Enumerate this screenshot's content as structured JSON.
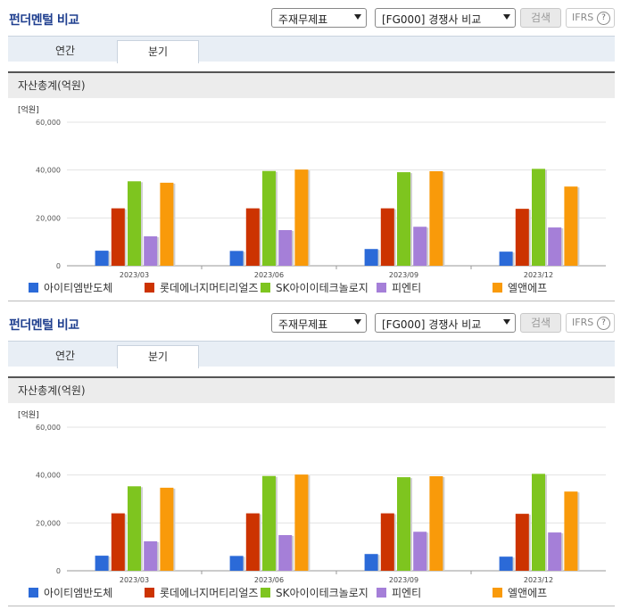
{
  "panels": [
    {
      "title": "펀더멘털 비교",
      "select1": "주재무제표",
      "select2": "[FG000] 경쟁사 비교",
      "search_label": "검색",
      "ifrs_label": "IFRS",
      "help_glyph": "?",
      "tabs": [
        "연간",
        "분기"
      ],
      "active_tab": "분기",
      "section_title": "자산총계(억원)"
    },
    {
      "title": "펀더멘털 비교",
      "select1": "주재무제표",
      "select2": "[FG000] 경쟁사 비교",
      "search_label": "검색",
      "ifrs_label": "IFRS",
      "help_glyph": "?",
      "tabs": [
        "연간",
        "분기"
      ],
      "active_tab": "분기",
      "section_title": "자산총계(억원)"
    }
  ],
  "chart_data": [
    {
      "type": "bar",
      "title": "자산총계(억원)",
      "unit_label": "[억원]",
      "ylim": [
        0,
        60000
      ],
      "yticks": [
        "0",
        "20,000",
        "40,000",
        "60,000"
      ],
      "categories": [
        "2023/03",
        "2023/06",
        "2023/09",
        "2023/12"
      ],
      "grid": true,
      "legend_position": "bottom",
      "series": [
        {
          "name": "아이티엠반도체",
          "color": "#2b6ad8",
          "values": [
            6300,
            6200,
            7000,
            5900
          ]
        },
        {
          "name": "롯데에너지머티리얼즈",
          "color": "#cc3300",
          "values": [
            24000,
            24000,
            24000,
            23800
          ]
        },
        {
          "name": "SK아이이테크놀로지",
          "color": "#7ec51f",
          "values": [
            35300,
            39600,
            39100,
            40500
          ]
        },
        {
          "name": "피엔티",
          "color": "#a57fd8",
          "values": [
            12300,
            14900,
            16300,
            16000
          ]
        },
        {
          "name": "엘앤에프",
          "color": "#f99a0a",
          "values": [
            34700,
            40200,
            39500,
            33100
          ]
        }
      ]
    },
    {
      "type": "bar",
      "title": "자산총계(억원)",
      "unit_label": "[억원]",
      "ylim": [
        0,
        60000
      ],
      "yticks": [
        "0",
        "20,000",
        "40,000",
        "60,000"
      ],
      "categories": [
        "2023/03",
        "2023/06",
        "2023/09",
        "2023/12"
      ],
      "grid": true,
      "legend_position": "bottom",
      "series": [
        {
          "name": "아이티엠반도체",
          "color": "#2b6ad8",
          "values": [
            6300,
            6200,
            7000,
            5900
          ]
        },
        {
          "name": "롯데에너지머티리얼즈",
          "color": "#cc3300",
          "values": [
            24000,
            24000,
            24000,
            23800
          ]
        },
        {
          "name": "SK아이이테크놀로지",
          "color": "#7ec51f",
          "values": [
            35300,
            39600,
            39100,
            40500
          ]
        },
        {
          "name": "피엔티",
          "color": "#a57fd8",
          "values": [
            12300,
            14900,
            16300,
            16000
          ]
        },
        {
          "name": "엘앤에프",
          "color": "#f99a0a",
          "values": [
            34700,
            40200,
            39500,
            33100
          ]
        }
      ]
    }
  ]
}
